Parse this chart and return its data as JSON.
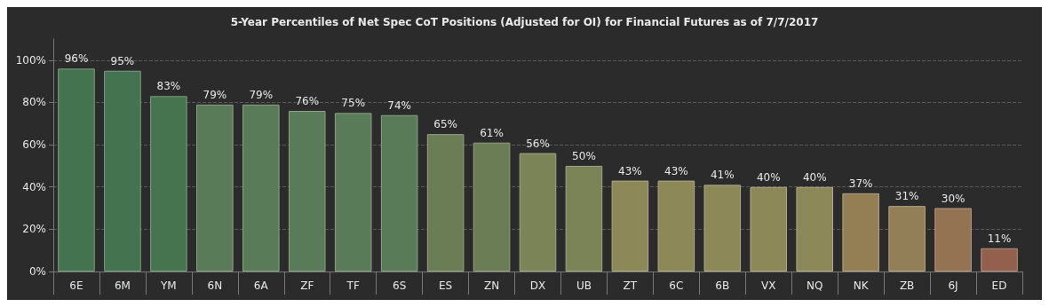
{
  "chart_data": {
    "type": "bar",
    "title": "5-Year Percentiles of Net Spec CoT Positions (Adjusted for OI) for Financial Futures as of 7/7/2017",
    "categories": [
      "6E",
      "6M",
      "YM",
      "6N",
      "6A",
      "ZF",
      "TF",
      "6S",
      "ES",
      "ZN",
      "DX",
      "UB",
      "ZT",
      "6C",
      "6B",
      "VX",
      "NQ",
      "NK",
      "ZB",
      "6J",
      "ED"
    ],
    "values": [
      96,
      95,
      83,
      79,
      79,
      76,
      75,
      74,
      65,
      61,
      56,
      50,
      43,
      43,
      41,
      40,
      40,
      37,
      31,
      30,
      11
    ],
    "value_labels": [
      "96%",
      "95%",
      "83%",
      "79%",
      "79%",
      "76%",
      "75%",
      "74%",
      "65%",
      "61%",
      "56%",
      "50%",
      "43%",
      "43%",
      "41%",
      "40%",
      "40%",
      "37%",
      "31%",
      "30%",
      "11%"
    ],
    "colors": [
      "#44734f",
      "#44734f",
      "#46744f",
      "#5a7b57",
      "#5a7b57",
      "#5a7b57",
      "#5a7b57",
      "#5a7b57",
      "#6a7d55",
      "#6a7d55",
      "#7a8457",
      "#7a8457",
      "#8c8858",
      "#8c8858",
      "#8c8858",
      "#8c8858",
      "#8c8858",
      "#947f55",
      "#927f57",
      "#947353",
      "#92604d"
    ],
    "ylim": [
      0,
      110
    ],
    "yticks": [
      {
        "value": 0,
        "label": "0%"
      },
      {
        "value": 20,
        "label": "20%"
      },
      {
        "value": 40,
        "label": "40%"
      },
      {
        "value": 60,
        "label": "60%"
      },
      {
        "value": 80,
        "label": "80%"
      },
      {
        "value": 100,
        "label": "100%"
      }
    ],
    "grid": "y"
  }
}
